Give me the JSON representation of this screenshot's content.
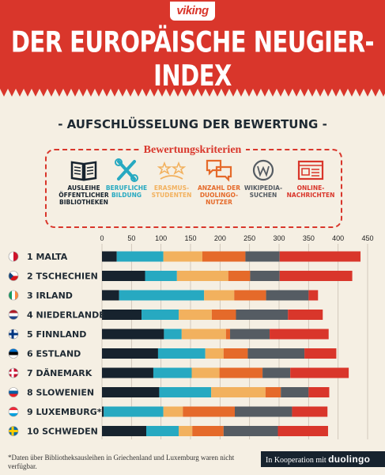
{
  "header": {
    "logo": "viking",
    "title": "DER EUROPÄISCHE NEUGIER-INDEX"
  },
  "subtitle": "- AUFSCHLÜSSELUNG DER BEWERTUNG -",
  "criteria": {
    "title": "Bewertungskriterien",
    "items": [
      {
        "label": "AUSLEIHE\nÖFFENTLICHER\nBIBLIOTHEKEN",
        "icon": "book-icon",
        "color": "#17232e"
      },
      {
        "label": "BERUFLICHE\nBILDUNG",
        "icon": "tools-icon",
        "color": "#27a9c1"
      },
      {
        "label": "ERASMUS-\nSTUDENTEN",
        "icon": "stars-icon",
        "color": "#f2b15e"
      },
      {
        "label": "ANZAHL DER\nDUOLINGO-\nNUTZER",
        "icon": "chat-icon",
        "color": "#e56a2a"
      },
      {
        "label": "WIKIPEDIA-\nSUCHEN",
        "icon": "wikipedia-icon",
        "color": "#555c63"
      },
      {
        "label": "ONLINE-\nNACHRICHTEN",
        "icon": "news-icon",
        "color": "#d9362b"
      }
    ]
  },
  "chart_data": {
    "type": "bar",
    "stacked": true,
    "orientation": "horizontal",
    "xlim": [
      0,
      450
    ],
    "xticks": [
      0,
      50,
      100,
      150,
      200,
      250,
      300,
      350,
      400,
      450
    ],
    "grid": true,
    "categories": [
      "1 MALTA",
      "2 TSCHECHIEN",
      "3 IRLAND",
      "4 NIEDERLANDE",
      "5 FINNLAND",
      "6 ESTLAND",
      "7 DÄNEMARK",
      "8 SLOWENIEN",
      "9 LUXEMBURG*",
      "10 SCHWEDEN"
    ],
    "flags": [
      "malta",
      "czech",
      "ireland",
      "netherlands",
      "finland",
      "estonia",
      "denmark",
      "slovenia",
      "luxembourg",
      "sweden"
    ],
    "colors": [
      "#17232e",
      "#27a9c1",
      "#f2b15e",
      "#e56a2a",
      "#555c63",
      "#d9362b"
    ],
    "series": [
      {
        "values": [
          25,
          73,
          29,
          67,
          105,
          95,
          87,
          97,
          3,
          75
        ]
      },
      {
        "values": [
          79,
          54,
          144,
          63,
          30,
          80,
          65,
          88,
          101,
          55
        ]
      },
      {
        "values": [
          66,
          87,
          51,
          56,
          75,
          31,
          47,
          92,
          33,
          23
        ]
      },
      {
        "values": [
          73,
          37,
          54,
          41,
          7,
          41,
          73,
          26,
          88,
          53
        ]
      },
      {
        "values": [
          58,
          50,
          72,
          88,
          67,
          96,
          47,
          47,
          97,
          92
        ]
      },
      {
        "values": [
          137,
          123,
          16,
          59,
          100,
          54,
          99,
          35,
          60,
          85
        ]
      }
    ]
  },
  "footnote": "*Daten über Bibliotheksausleihen in Griechenland und Luxemburg waren nicht verfügbar.",
  "partner": {
    "prefix": "In Kooperation mit",
    "name": "duolingo"
  }
}
